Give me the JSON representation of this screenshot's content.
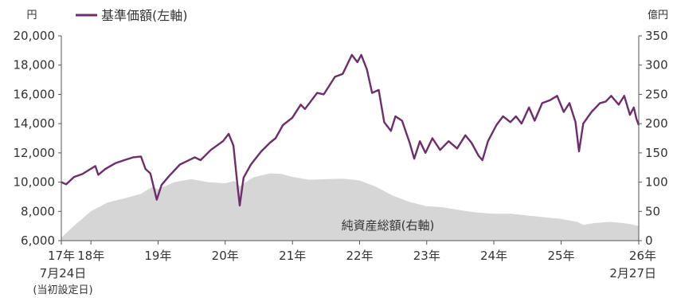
{
  "chart_data": {
    "type": "line",
    "left_unit": "円",
    "right_unit": "億円",
    "left_axis": {
      "min": 6000,
      "max": 20000,
      "ticks": [
        "6,000",
        "8,000",
        "10,000",
        "12,000",
        "14,000",
        "16,000",
        "18,000",
        "20,000"
      ]
    },
    "right_axis": {
      "min": 0,
      "max": 350,
      "ticks": [
        "0",
        "50",
        "100",
        "150",
        "200",
        "250",
        "300",
        "350"
      ]
    },
    "x_start": "2017-07-24",
    "x_end": "2026-02-27",
    "x_labels": [
      {
        "date": "2017-07-24",
        "label": "17年"
      },
      {
        "date": "2018-01-01",
        "label": "18年"
      },
      {
        "date": "2019-01-01",
        "label": "19年"
      },
      {
        "date": "2020-01-01",
        "label": "20年"
      },
      {
        "date": "2021-01-01",
        "label": "21年"
      },
      {
        "date": "2022-01-01",
        "label": "22年"
      },
      {
        "date": "2023-01-01",
        "label": "23年"
      },
      {
        "date": "2024-01-01",
        "label": "24年"
      },
      {
        "date": "2025-01-01",
        "label": "25年"
      },
      {
        "date": "2026-02-27",
        "label": "26年"
      }
    ],
    "start_note": [
      "7月24日",
      "(当初設定日)"
    ],
    "end_note": "2月27日",
    "series": [
      {
        "name": "基準価額(左軸)",
        "axis": "left",
        "color": "#6e2d6c",
        "points": [
          [
            "2017-07-24",
            10000
          ],
          [
            "2017-08-20",
            9850
          ],
          [
            "2017-10-01",
            10350
          ],
          [
            "2017-11-15",
            10550
          ],
          [
            "2018-01-25",
            11100
          ],
          [
            "2018-02-10",
            10500
          ],
          [
            "2018-03-20",
            10900
          ],
          [
            "2018-05-15",
            11300
          ],
          [
            "2018-07-01",
            11500
          ],
          [
            "2018-08-20",
            11700
          ],
          [
            "2018-09-30",
            11750
          ],
          [
            "2018-10-25",
            10900
          ],
          [
            "2018-11-20",
            10600
          ],
          [
            "2018-12-25",
            8800
          ],
          [
            "2019-01-20",
            9800
          ],
          [
            "2019-03-01",
            10400
          ],
          [
            "2019-04-30",
            11200
          ],
          [
            "2019-06-01",
            11400
          ],
          [
            "2019-07-20",
            11700
          ],
          [
            "2019-08-20",
            11500
          ],
          [
            "2019-10-15",
            12200
          ],
          [
            "2019-12-20",
            12800
          ],
          [
            "2020-01-20",
            13300
          ],
          [
            "2020-02-15",
            12500
          ],
          [
            "2020-03-10",
            9500
          ],
          [
            "2020-03-20",
            8400
          ],
          [
            "2020-04-10",
            10300
          ],
          [
            "2020-05-20",
            11200
          ],
          [
            "2020-07-15",
            12100
          ],
          [
            "2020-09-01",
            12700
          ],
          [
            "2020-10-01",
            13000
          ],
          [
            "2020-11-10",
            13900
          ],
          [
            "2020-12-31",
            14400
          ],
          [
            "2021-02-15",
            15300
          ],
          [
            "2021-03-10",
            15000
          ],
          [
            "2021-05-15",
            16100
          ],
          [
            "2021-06-20",
            16000
          ],
          [
            "2021-08-20",
            17200
          ],
          [
            "2021-10-01",
            17400
          ],
          [
            "2021-11-20",
            18700
          ],
          [
            "2021-12-20",
            18200
          ],
          [
            "2022-01-10",
            18700
          ],
          [
            "2022-02-10",
            17700
          ],
          [
            "2022-03-10",
            16100
          ],
          [
            "2022-04-15",
            16300
          ],
          [
            "2022-05-15",
            14100
          ],
          [
            "2022-06-20",
            13500
          ],
          [
            "2022-07-15",
            14500
          ],
          [
            "2022-08-20",
            14200
          ],
          [
            "2022-09-30",
            12700
          ],
          [
            "2022-10-25",
            11600
          ],
          [
            "2022-11-25",
            12800
          ],
          [
            "2022-12-25",
            12000
          ],
          [
            "2023-02-01",
            13000
          ],
          [
            "2023-03-15",
            12200
          ],
          [
            "2023-04-30",
            12800
          ],
          [
            "2023-06-15",
            12300
          ],
          [
            "2023-07-30",
            13200
          ],
          [
            "2023-09-01",
            12700
          ],
          [
            "2023-10-10",
            11800
          ],
          [
            "2023-10-31",
            11500
          ],
          [
            "2023-11-30",
            12800
          ],
          [
            "2024-01-15",
            13900
          ],
          [
            "2024-02-20",
            14500
          ],
          [
            "2024-03-31",
            14100
          ],
          [
            "2024-04-30",
            14500
          ],
          [
            "2024-05-31",
            14000
          ],
          [
            "2024-07-10",
            15100
          ],
          [
            "2024-08-10",
            14200
          ],
          [
            "2024-09-20",
            15400
          ],
          [
            "2024-11-01",
            15600
          ],
          [
            "2024-12-10",
            15900
          ],
          [
            "2025-01-15",
            14800
          ],
          [
            "2025-02-15",
            15400
          ],
          [
            "2025-03-20",
            14100
          ],
          [
            "2025-04-08",
            12100
          ],
          [
            "2025-05-01",
            14000
          ],
          [
            "2025-06-15",
            14800
          ],
          [
            "2025-07-31",
            15400
          ],
          [
            "2025-08-31",
            15500
          ],
          [
            "2025-09-30",
            15900
          ],
          [
            "2025-11-10",
            15300
          ],
          [
            "2025-12-10",
            15900
          ],
          [
            "2026-01-10",
            14600
          ],
          [
            "2026-01-31",
            15100
          ],
          [
            "2026-02-15",
            14300
          ],
          [
            "2026-02-27",
            13900
          ]
        ]
      },
      {
        "name": "純資産総額(右軸)",
        "axis": "right",
        "type": "area",
        "color": "#d6d6d6",
        "points": [
          [
            "2017-07-24",
            5
          ],
          [
            "2017-09-30",
            25
          ],
          [
            "2017-12-31",
            50
          ],
          [
            "2018-03-31",
            65
          ],
          [
            "2018-06-30",
            72
          ],
          [
            "2018-09-30",
            80
          ],
          [
            "2018-11-30",
            92
          ],
          [
            "2018-12-31",
            88
          ],
          [
            "2019-03-31",
            100
          ],
          [
            "2019-06-30",
            105
          ],
          [
            "2019-09-30",
            100
          ],
          [
            "2019-12-31",
            98
          ],
          [
            "2020-02-20",
            102
          ],
          [
            "2020-03-20",
            93
          ],
          [
            "2020-05-31",
            108
          ],
          [
            "2020-08-31",
            115
          ],
          [
            "2020-10-31",
            114
          ],
          [
            "2020-12-31",
            109
          ],
          [
            "2021-03-31",
            104
          ],
          [
            "2021-06-30",
            105
          ],
          [
            "2021-09-30",
            106
          ],
          [
            "2021-12-31",
            103
          ],
          [
            "2022-03-31",
            92
          ],
          [
            "2022-06-30",
            77
          ],
          [
            "2022-09-30",
            66
          ],
          [
            "2022-12-31",
            59
          ],
          [
            "2023-03-31",
            57
          ],
          [
            "2023-06-30",
            52
          ],
          [
            "2023-09-30",
            48
          ],
          [
            "2023-12-31",
            46
          ],
          [
            "2024-03-31",
            46
          ],
          [
            "2024-06-30",
            43
          ],
          [
            "2024-09-30",
            40
          ],
          [
            "2024-12-31",
            37
          ],
          [
            "2025-03-31",
            32
          ],
          [
            "2025-04-30",
            27
          ],
          [
            "2025-06-30",
            30
          ],
          [
            "2025-09-30",
            32
          ],
          [
            "2025-12-31",
            29
          ],
          [
            "2026-02-27",
            25
          ]
        ]
      }
    ],
    "area_label": "純資産総額(右軸)",
    "legend_placement": "top-left",
    "grid": false
  }
}
